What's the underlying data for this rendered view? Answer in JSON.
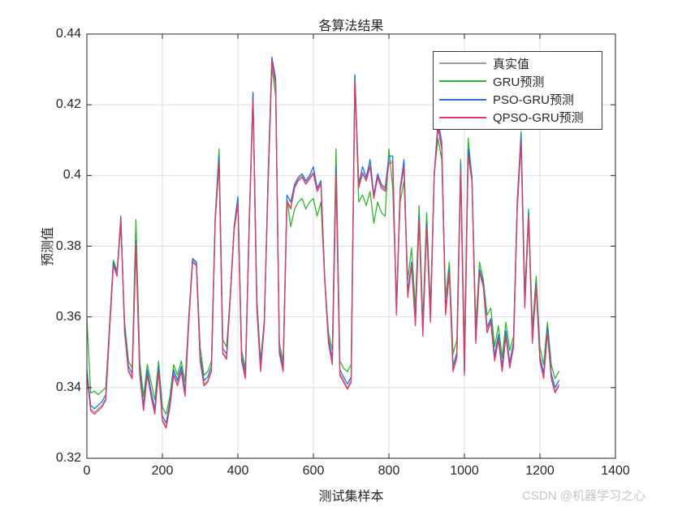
{
  "chart_data": {
    "type": "line",
    "title": "各算法结果",
    "xlabel": "测试集样本",
    "ylabel": "预测值",
    "xlim": [
      0,
      1400
    ],
    "ylim": [
      0.32,
      0.44
    ],
    "x_tick_labels": [
      "0",
      "200",
      "400",
      "600",
      "800",
      "1000",
      "1200",
      "1400"
    ],
    "y_tick_labels": [
      "0.32",
      "0.34",
      "0.36",
      "0.38",
      "0.4",
      "0.42",
      "0.44"
    ],
    "grid": true,
    "grid_color": "#dedede",
    "axis_color": "#262626",
    "legend_position": "top-right",
    "x": [
      0,
      10,
      20,
      30,
      40,
      50,
      60,
      70,
      80,
      90,
      100,
      110,
      120,
      130,
      140,
      150,
      160,
      170,
      180,
      190,
      200,
      210,
      220,
      230,
      240,
      250,
      260,
      270,
      280,
      290,
      300,
      310,
      320,
      330,
      340,
      350,
      360,
      370,
      380,
      390,
      400,
      410,
      420,
      430,
      440,
      450,
      460,
      470,
      480,
      490,
      500,
      510,
      520,
      530,
      540,
      550,
      560,
      570,
      580,
      590,
      600,
      610,
      620,
      630,
      640,
      650,
      660,
      670,
      680,
      690,
      700,
      710,
      720,
      730,
      740,
      750,
      760,
      770,
      780,
      790,
      800,
      810,
      820,
      830,
      840,
      850,
      860,
      870,
      880,
      890,
      900,
      910,
      920,
      930,
      940,
      950,
      960,
      970,
      980,
      990,
      1000,
      1010,
      1020,
      1030,
      1040,
      1050,
      1060,
      1070,
      1080,
      1090,
      1100,
      1110,
      1120,
      1130,
      1140,
      1150,
      1160,
      1170,
      1180,
      1190,
      1200,
      1210,
      1220,
      1230,
      1240,
      1250
    ],
    "series": [
      {
        "name": "真实值",
        "color": "#9e9e9e",
        "values": [
          0.344,
          0.334,
          0.333,
          0.334,
          0.335,
          0.337,
          0.356,
          0.375,
          0.372,
          0.388,
          0.356,
          0.345,
          0.343,
          0.381,
          0.344,
          0.334,
          0.344,
          0.338,
          0.333,
          0.345,
          0.331,
          0.329,
          0.335,
          0.344,
          0.341,
          0.345,
          0.338,
          0.359,
          0.376,
          0.375,
          0.348,
          0.341,
          0.342,
          0.345,
          0.3875,
          0.404,
          0.35,
          0.3485,
          0.366,
          0.385,
          0.3925,
          0.348,
          0.343,
          0.387,
          0.422,
          0.363,
          0.345,
          0.358,
          0.399,
          0.433,
          0.426,
          0.35,
          0.345,
          0.393,
          0.391,
          0.397,
          0.399,
          0.4,
          0.398,
          0.3995,
          0.401,
          0.396,
          0.398,
          0.371,
          0.353,
          0.347,
          0.401,
          0.344,
          0.342,
          0.34,
          0.342,
          0.427,
          0.397,
          0.401,
          0.399,
          0.403,
          0.394,
          0.4,
          0.397,
          0.396,
          0.404,
          0.404,
          0.361,
          0.396,
          0.403,
          0.366,
          0.375,
          0.358,
          0.388,
          0.355,
          0.386,
          0.359,
          0.4,
          0.414,
          0.408,
          0.361,
          0.373,
          0.345,
          0.349,
          0.402,
          0.344,
          0.406,
          0.399,
          0.353,
          0.373,
          0.369,
          0.356,
          0.359,
          0.348,
          0.354,
          0.345,
          0.355,
          0.346,
          0.352,
          0.391,
          0.41,
          0.363,
          0.389,
          0.353,
          0.369,
          0.348,
          0.343,
          0.356,
          0.343,
          0.339,
          0.341
        ]
      },
      {
        "name": "GRU预测",
        "color": "#32b432",
        "values": [
          0.3595,
          0.3385,
          0.339,
          0.338,
          0.339,
          0.34,
          0.3575,
          0.376,
          0.373,
          0.3855,
          0.3585,
          0.3475,
          0.3455,
          0.3875,
          0.3475,
          0.3375,
          0.3465,
          0.3415,
          0.3365,
          0.3475,
          0.3345,
          0.3325,
          0.3375,
          0.3465,
          0.3435,
          0.3475,
          0.3415,
          0.3605,
          0.3765,
          0.3755,
          0.3515,
          0.3435,
          0.3445,
          0.3475,
          0.3885,
          0.4075,
          0.3535,
          0.3515,
          0.3665,
          0.3855,
          0.3935,
          0.3505,
          0.3455,
          0.3855,
          0.4235,
          0.3655,
          0.3475,
          0.3585,
          0.3965,
          0.4305,
          0.4225,
          0.3525,
          0.3475,
          0.3935,
          0.3855,
          0.3905,
          0.3925,
          0.3935,
          0.3905,
          0.3925,
          0.3935,
          0.3885,
          0.3925,
          0.3705,
          0.3555,
          0.3505,
          0.4075,
          0.3475,
          0.3455,
          0.3445,
          0.3465,
          0.4285,
          0.3925,
          0.3945,
          0.3915,
          0.3955,
          0.3865,
          0.3925,
          0.3895,
          0.3885,
          0.4075,
          0.3965,
          0.3645,
          0.3925,
          0.3985,
          0.3705,
          0.3795,
          0.3625,
          0.3915,
          0.3585,
          0.3895,
          0.3625,
          0.4005,
          0.4105,
          0.4045,
          0.3655,
          0.3755,
          0.3495,
          0.3535,
          0.4045,
          0.3485,
          0.4105,
          0.3995,
          0.3575,
          0.3755,
          0.3705,
          0.3605,
          0.3625,
          0.3515,
          0.3575,
          0.3485,
          0.3585,
          0.3505,
          0.3545,
          0.3925,
          0.4125,
          0.3665,
          0.3905,
          0.3565,
          0.3715,
          0.3515,
          0.3465,
          0.3585,
          0.3465,
          0.3425,
          0.3445
        ]
      },
      {
        "name": "PSO-GRU预测",
        "color": "#2a70d8",
        "values": [
          0.345,
          0.335,
          0.334,
          0.335,
          0.336,
          0.338,
          0.357,
          0.3755,
          0.3725,
          0.3885,
          0.357,
          0.346,
          0.344,
          0.3815,
          0.345,
          0.335,
          0.345,
          0.339,
          0.334,
          0.346,
          0.332,
          0.33,
          0.336,
          0.345,
          0.342,
          0.346,
          0.339,
          0.3595,
          0.3765,
          0.3755,
          0.349,
          0.342,
          0.343,
          0.346,
          0.388,
          0.4055,
          0.351,
          0.3495,
          0.3665,
          0.3855,
          0.394,
          0.349,
          0.344,
          0.3875,
          0.4235,
          0.364,
          0.346,
          0.359,
          0.3995,
          0.4335,
          0.4275,
          0.351,
          0.346,
          0.3945,
          0.3925,
          0.3975,
          0.3995,
          0.4005,
          0.3985,
          0.4,
          0.4025,
          0.3965,
          0.3985,
          0.3715,
          0.354,
          0.348,
          0.4025,
          0.345,
          0.343,
          0.341,
          0.343,
          0.4285,
          0.3975,
          0.4025,
          0.3995,
          0.4045,
          0.3945,
          0.4005,
          0.3975,
          0.3965,
          0.4055,
          0.4055,
          0.362,
          0.3965,
          0.4045,
          0.367,
          0.3755,
          0.359,
          0.3885,
          0.356,
          0.3865,
          0.36,
          0.4005,
          0.4155,
          0.4095,
          0.362,
          0.3735,
          0.346,
          0.35,
          0.4035,
          0.345,
          0.4075,
          0.3995,
          0.354,
          0.3735,
          0.3695,
          0.357,
          0.3595,
          0.349,
          0.355,
          0.346,
          0.356,
          0.347,
          0.353,
          0.3925,
          0.4115,
          0.364,
          0.3895,
          0.354,
          0.3695,
          0.349,
          0.344,
          0.357,
          0.344,
          0.34,
          0.342
        ]
      },
      {
        "name": "QPSO-GRU预测",
        "color": "#e23a68",
        "values": [
          0.3435,
          0.3335,
          0.3325,
          0.3335,
          0.3345,
          0.3365,
          0.3555,
          0.3745,
          0.3715,
          0.3875,
          0.3555,
          0.3445,
          0.3425,
          0.3805,
          0.3435,
          0.3335,
          0.3435,
          0.3375,
          0.3325,
          0.3445,
          0.3305,
          0.3285,
          0.3345,
          0.3435,
          0.3405,
          0.3445,
          0.3375,
          0.3585,
          0.3755,
          0.3745,
          0.3475,
          0.3405,
          0.3415,
          0.3445,
          0.387,
          0.4035,
          0.3495,
          0.348,
          0.3655,
          0.3845,
          0.392,
          0.3475,
          0.3425,
          0.3865,
          0.4215,
          0.3625,
          0.3445,
          0.3575,
          0.3985,
          0.4325,
          0.4255,
          0.3495,
          0.3445,
          0.3925,
          0.3905,
          0.3965,
          0.3985,
          0.3995,
          0.3975,
          0.399,
          0.4005,
          0.3955,
          0.3975,
          0.3705,
          0.3525,
          0.3465,
          0.4005,
          0.3435,
          0.3415,
          0.3395,
          0.3415,
          0.4265,
          0.3965,
          0.4005,
          0.3985,
          0.4025,
          0.3935,
          0.3995,
          0.3965,
          0.3955,
          0.4035,
          0.4035,
          0.3605,
          0.3955,
          0.4025,
          0.3655,
          0.3745,
          0.3575,
          0.3875,
          0.3545,
          0.3855,
          0.3585,
          0.3995,
          0.4135,
          0.4075,
          0.3605,
          0.3725,
          0.3445,
          0.3485,
          0.4015,
          0.3435,
          0.4055,
          0.3985,
          0.3525,
          0.3725,
          0.3685,
          0.3555,
          0.3585,
          0.3475,
          0.3535,
          0.3445,
          0.3545,
          0.3455,
          0.3515,
          0.3905,
          0.4095,
          0.3625,
          0.3885,
          0.3525,
          0.3685,
          0.3475,
          0.3425,
          0.3555,
          0.3425,
          0.3385,
          0.3405
        ]
      }
    ]
  },
  "watermark": {
    "text": "CSDN @机器学习之心",
    "color": "#c6c6c6"
  }
}
